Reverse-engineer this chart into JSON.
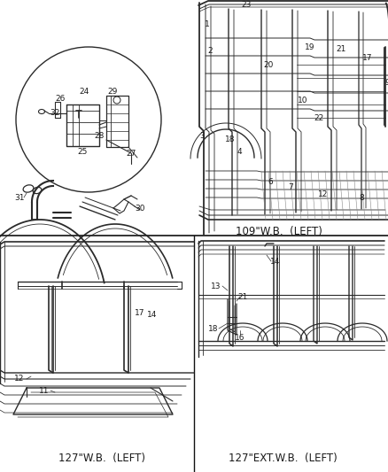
{
  "bg_color": "#ffffff",
  "line_color": "#2a2a2a",
  "text_color": "#1a1a1a",
  "section_labels": {
    "top_right": "109\"W.B.  (LEFT)",
    "bottom_left": "127\"W.B.  (LEFT)",
    "bottom_right": "127\"EXT.W.B.  (LEFT)"
  }
}
